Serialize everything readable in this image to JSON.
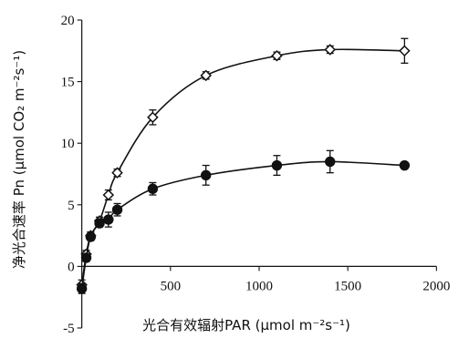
{
  "chart_data": {
    "type": "line",
    "title": "",
    "xlabel": "光合有效辐射PAR (μmol m⁻²s⁻¹)",
    "ylabel": "净光合速率 Pn (μmol CO₂ m⁻²s⁻¹)",
    "xlim": [
      -60,
      2060
    ],
    "ylim": [
      -5,
      20
    ],
    "x_ticks": [
      500,
      1000,
      1500,
      2000
    ],
    "y_ticks": [
      -5,
      0,
      5,
      10,
      15,
      20
    ],
    "grid": false,
    "series": [
      {
        "marker": "diamond-open",
        "color": "#111111",
        "x": [
          0,
          25,
          50,
          100,
          150,
          200,
          400,
          700,
          1100,
          1400,
          1820
        ],
        "y": [
          -1.5,
          1.0,
          2.5,
          3.7,
          5.8,
          7.6,
          12.1,
          15.5,
          17.1,
          17.6,
          17.5
        ],
        "err": [
          0.4,
          0.3,
          0.3,
          0.3,
          0.4,
          0.3,
          0.6,
          0.3,
          0.3,
          0.3,
          1.0
        ]
      },
      {
        "marker": "circle-filled",
        "color": "#111111",
        "x": [
          0,
          25,
          50,
          100,
          150,
          200,
          400,
          700,
          1100,
          1400,
          1820
        ],
        "y": [
          -1.8,
          0.7,
          2.4,
          3.5,
          3.8,
          4.6,
          6.3,
          7.4,
          8.2,
          8.5,
          8.2
        ],
        "err": [
          0.4,
          0.3,
          0.3,
          0.3,
          0.6,
          0.5,
          0.5,
          0.8,
          0.8,
          0.9,
          0.2
        ]
      }
    ]
  }
}
